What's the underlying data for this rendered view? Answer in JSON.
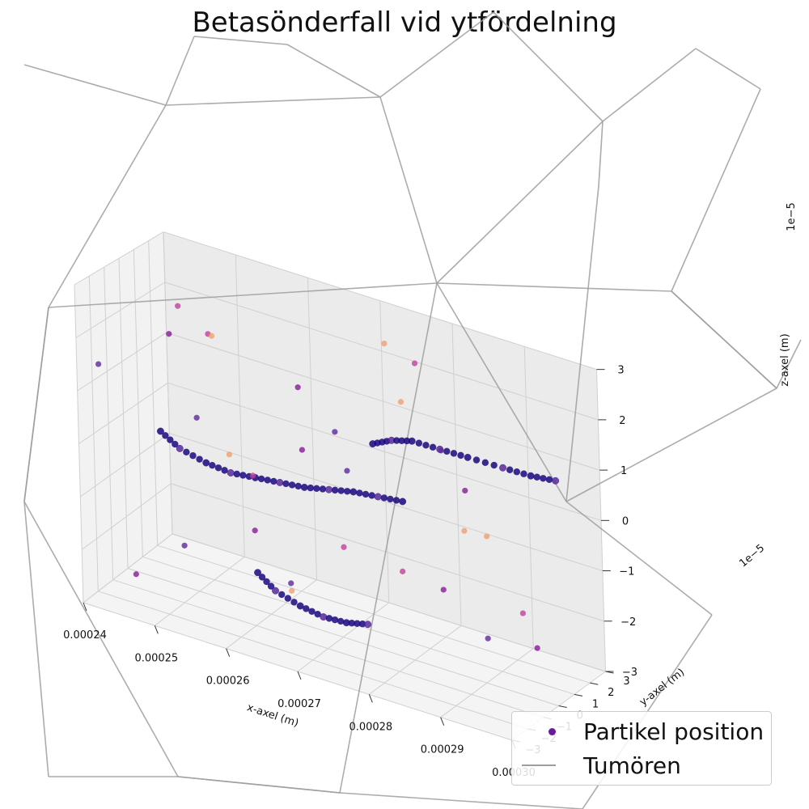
{
  "chart_data": {
    "type": "scatter",
    "title": "Betasönderfall vid ytfördelning",
    "xlabel": "x-axel (m)",
    "ylabel": "y-axel (m)",
    "zlabel": "z-axel (m)",
    "x_ticks": [
      "0.00024",
      "0.00025",
      "0.00026",
      "0.00027",
      "0.00028",
      "0.00029",
      "0.00030"
    ],
    "y_ticks": [
      "−3",
      "−2",
      "−1",
      "0",
      "1",
      "2",
      "3"
    ],
    "y_offset": "1e−5",
    "z_ticks": [
      "−3",
      "−2",
      "−1",
      "0",
      "1",
      "2",
      "3"
    ],
    "z_offset": "1e−5",
    "xlim": [
      0.00024,
      0.0003
    ],
    "ylim": [
      -3e-05,
      3e-05
    ],
    "zlim": [
      -3e-05,
      3e-05
    ],
    "grid": true,
    "legend_position": "bottom-right",
    "legend": [
      {
        "label": "Partikel position",
        "marker": "dot",
        "color": "#6a1b9a"
      },
      {
        "label": "Tumören",
        "marker": "line",
        "color": "#9e9e9e"
      }
    ],
    "series": [
      {
        "name": "Partikel position",
        "colormap": [
          "#1a0880",
          "#5b2b9c",
          "#8a1a9b",
          "#c4409b",
          "#f0a070"
        ],
        "tracks": [
          {
            "x": [
              0.000249,
              0.000251,
              0.000254,
              0.000257,
              0.00026,
              0.000263,
              0.000266,
              0.000269,
              0.000272,
              0.000275,
              0.000278
            ],
            "y": [
              -1.8e-05,
              -1.5e-05,
              -1.2e-05,
              -1e-05,
              -8e-06,
              -6e-06,
              -4e-06,
              -2e-06,
              0.0,
              2e-06,
              4e-06
            ],
            "z": [
              4e-06,
              1e-06,
              -1e-06,
              -2e-06,
              -2e-06,
              -2e-06,
              -2e-06,
              -1.5e-06,
              -1e-06,
              -1e-06,
              -1e-06
            ]
          },
          {
            "x": [
              0.000276,
              0.000278,
              0.00028,
              0.000283,
              0.000286,
              0.00029,
              0.000293,
              0.000296
            ],
            "y": [
              -5e-06,
              -2e-06,
              2e-06,
              6e-06,
              1e-05,
              1.4e-05,
              1.8e-05,
              2e-05
            ],
            "z": [
              1.1e-05,
              1.2e-05,
              1.2e-05,
              1.1e-05,
              1e-05,
              9e-06,
              8e-06,
              8e-06
            ]
          },
          {
            "x": [
              0.000263,
              0.000265,
              0.000268,
              0.000271,
              0.000274,
              0.000277
            ],
            "y": [
              -2.2e-05,
              -2e-05,
              -1.8e-05,
              -1.7e-05,
              -1.6e-05,
              -1.6e-05
            ],
            "z": [
              -1.6e-05,
              -1.9e-05,
              -2.1e-05,
              -2.2e-05,
              -2.2e-05,
              -2.1e-05
            ]
          }
        ],
        "scatter": {
          "x": [
            0.000242,
            0.000245,
            0.000247,
            0.00025,
            0.000252,
            0.000255,
            0.000258,
            0.000261,
            0.000264,
            0.000267,
            0.00027,
            0.000273,
            0.000276,
            0.000279,
            0.000282,
            0.000285,
            0.000288,
            0.000291,
            0.000294,
            0.000297,
            0.000244,
            0.000248,
            0.000253,
            0.000257,
            0.000262,
            0.000268,
            0.000274,
            0.000281,
            0.000287,
            0.000293
          ],
          "y": [
            -2.5e-05,
            -1.8e-05,
            5e-06,
            2.2e-05,
            -8e-06,
            1.4e-05,
            -2.7e-05,
            9e-06,
            2.6e-05,
            -1.1e-05,
            2e-06,
            1.8e-05,
            -2.2e-05,
            2.4e-05,
            -4e-06,
            1.1e-05,
            -1.6e-05,
            2.8e-05,
            6e-06,
            -2.9e-05,
            1.9e-05,
            -6e-06,
            2.3e-05,
            -2e-05,
            4e-06,
            -1.4e-05,
            2.1e-05,
            -9e-06,
            1.5e-05,
            -2.4e-05
          ],
          "z": [
            1.5e-05,
            -2.5e-05,
            2.3e-05,
            -8e-06,
            6e-06,
            -1.9e-05,
            2.8e-05,
            -2.7e-05,
            2e-06,
            1.9e-05,
            -1.3e-05,
            2.5e-05,
            9e-06,
            -2.2e-05,
            2.9e-05,
            -5e-06,
            1.7e-05,
            -2.9e-05,
            -1.6e-05,
            7e-06,
            -2.8e-05,
            2e-05,
            -1.1e-05,
            2.6e-05,
            -2.4e-05,
            8e-06,
            -2e-05,
            2.2e-05,
            -2.6e-05,
            1.3e-05
          ]
        }
      },
      {
        "name": "Tumören",
        "color": "#9e9e9e",
        "type": "wireframe"
      }
    ]
  }
}
